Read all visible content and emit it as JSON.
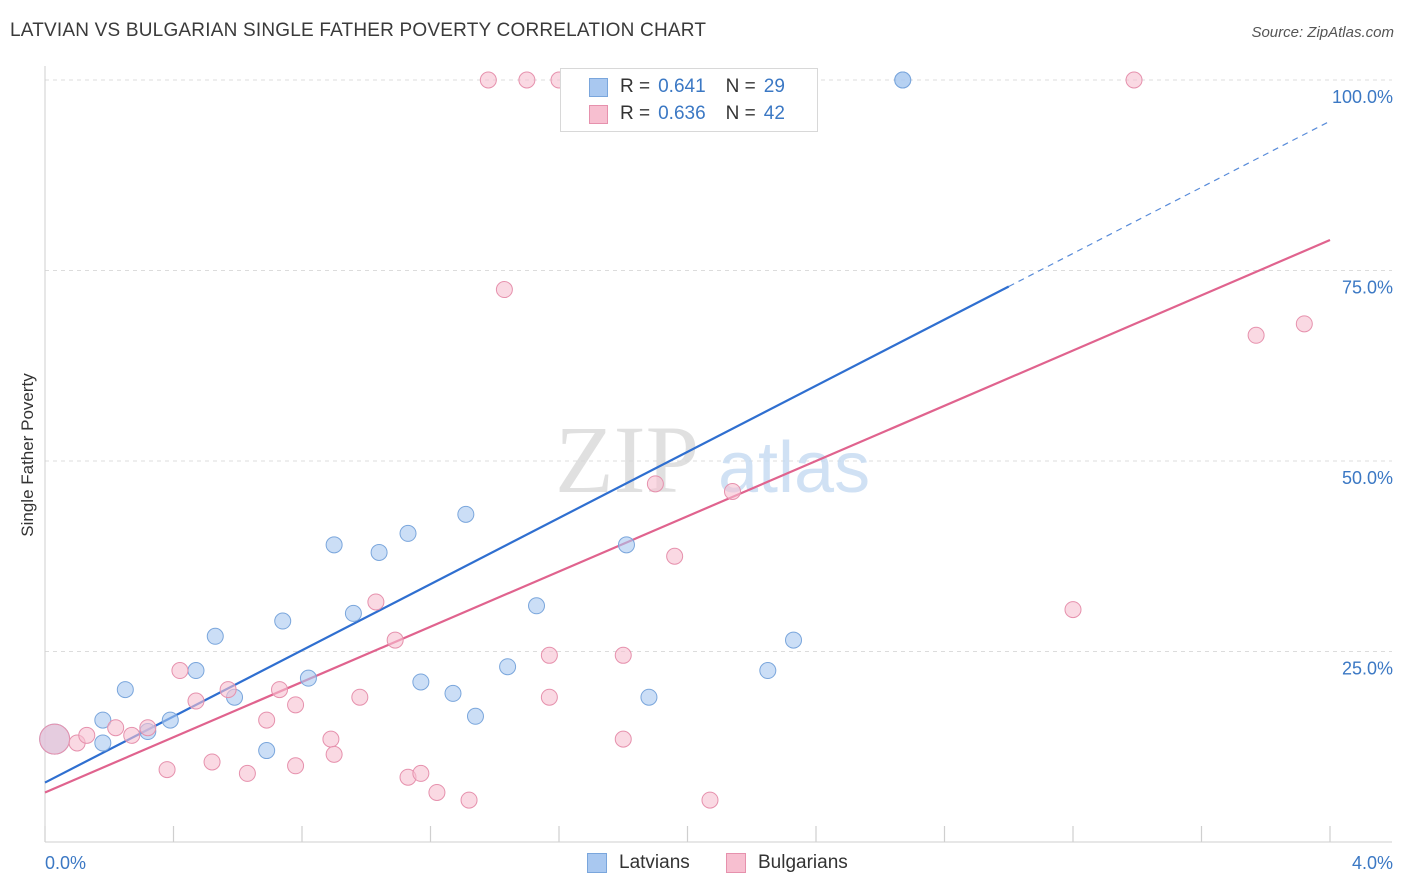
{
  "title": "LATVIAN VS BULGARIAN SINGLE FATHER POVERTY CORRELATION CHART",
  "source": "Source: ZipAtlas.com",
  "watermark": {
    "zip": "ZIP",
    "atlas": "atlas"
  },
  "legend_stats": [
    {
      "r_label": "R = ",
      "r_value": "0.641",
      "n_label": "N = ",
      "n_value": "29",
      "color": "#a9c8f0",
      "border": "#7aa6dc"
    },
    {
      "r_label": "R = ",
      "r_value": "0.636",
      "n_label": "N = ",
      "n_value": "42",
      "color": "#f7bfd0",
      "border": "#e691ad"
    }
  ],
  "chart_data": {
    "type": "scatter",
    "ylabel": "Single Father Poverty",
    "xlim": [
      0,
      4.0
    ],
    "ylim": [
      0,
      100
    ],
    "x_tick_labels": [
      "0.0%",
      "4.0%"
    ],
    "y_ticks": [
      25,
      50,
      75,
      100
    ],
    "y_tick_labels": [
      "25.0%",
      "50.0%",
      "75.0%",
      "100.0%"
    ],
    "grid": true,
    "legend_position": "bottom",
    "series": [
      {
        "name": "Latvians",
        "color": "#a9c8f0",
        "line_color": "#2f6fd0",
        "points": [
          [
            0.03,
            13.5
          ],
          [
            0.18,
            13.0
          ],
          [
            0.18,
            16.0
          ],
          [
            0.25,
            20.0
          ],
          [
            0.32,
            14.5
          ],
          [
            0.39,
            16.0
          ],
          [
            0.47,
            22.5
          ],
          [
            0.53,
            27.0
          ],
          [
            0.59,
            19.0
          ],
          [
            0.69,
            12.0
          ],
          [
            0.74,
            29.0
          ],
          [
            0.82,
            21.5
          ],
          [
            0.9,
            39.0
          ],
          [
            0.96,
            30.0
          ],
          [
            1.04,
            38.0
          ],
          [
            1.13,
            40.5
          ],
          [
            1.17,
            21.0
          ],
          [
            1.27,
            19.5
          ],
          [
            1.31,
            43.0
          ],
          [
            1.34,
            16.5
          ],
          [
            1.44,
            23.0
          ],
          [
            1.53,
            31.0
          ],
          [
            1.81,
            39.0
          ],
          [
            1.88,
            19.0
          ],
          [
            1.93,
            100.0
          ],
          [
            2.25,
            22.5
          ],
          [
            2.33,
            26.5
          ],
          [
            2.67,
            100.0
          ],
          [
            2.67,
            100.0
          ]
        ],
        "trend": {
          "x0": 0.0,
          "y0": 7.8,
          "x1": 3.0,
          "y1": 72.9,
          "dashed_to_x": 4.0,
          "dashed_to_y": 94.6
        }
      },
      {
        "name": "Bulgarians",
        "color": "#f7bfd0",
        "line_color": "#e0638e",
        "points": [
          [
            0.03,
            13.5
          ],
          [
            0.1,
            13.0
          ],
          [
            0.13,
            14.0
          ],
          [
            0.22,
            15.0
          ],
          [
            0.27,
            14.0
          ],
          [
            0.32,
            15.0
          ],
          [
            0.38,
            9.5
          ],
          [
            0.42,
            22.5
          ],
          [
            0.47,
            18.5
          ],
          [
            0.52,
            10.5
          ],
          [
            0.57,
            20.0
          ],
          [
            0.63,
            9.0
          ],
          [
            0.69,
            16.0
          ],
          [
            0.73,
            20.0
          ],
          [
            0.78,
            10.0
          ],
          [
            0.78,
            18.0
          ],
          [
            0.89,
            13.5
          ],
          [
            0.9,
            11.5
          ],
          [
            0.98,
            19.0
          ],
          [
            1.03,
            31.5
          ],
          [
            1.09,
            26.5
          ],
          [
            1.13,
            8.5
          ],
          [
            1.17,
            9.0
          ],
          [
            1.22,
            6.5
          ],
          [
            1.32,
            5.5
          ],
          [
            1.38,
            100.0
          ],
          [
            1.43,
            72.5
          ],
          [
            1.5,
            100.0
          ],
          [
            1.57,
            24.5
          ],
          [
            1.57,
            19.0
          ],
          [
            1.6,
            100.0
          ],
          [
            1.8,
            24.5
          ],
          [
            1.8,
            13.5
          ],
          [
            1.9,
            47.0
          ],
          [
            1.96,
            37.5
          ],
          [
            2.06,
            100.0
          ],
          [
            2.07,
            5.5
          ],
          [
            2.14,
            46.0
          ],
          [
            3.2,
            30.5
          ],
          [
            3.39,
            100.0
          ],
          [
            3.77,
            66.5
          ],
          [
            3.92,
            68.0
          ]
        ],
        "trend": {
          "x0": 0.0,
          "y0": 6.5,
          "x1": 4.0,
          "y1": 79.0
        }
      }
    ]
  }
}
